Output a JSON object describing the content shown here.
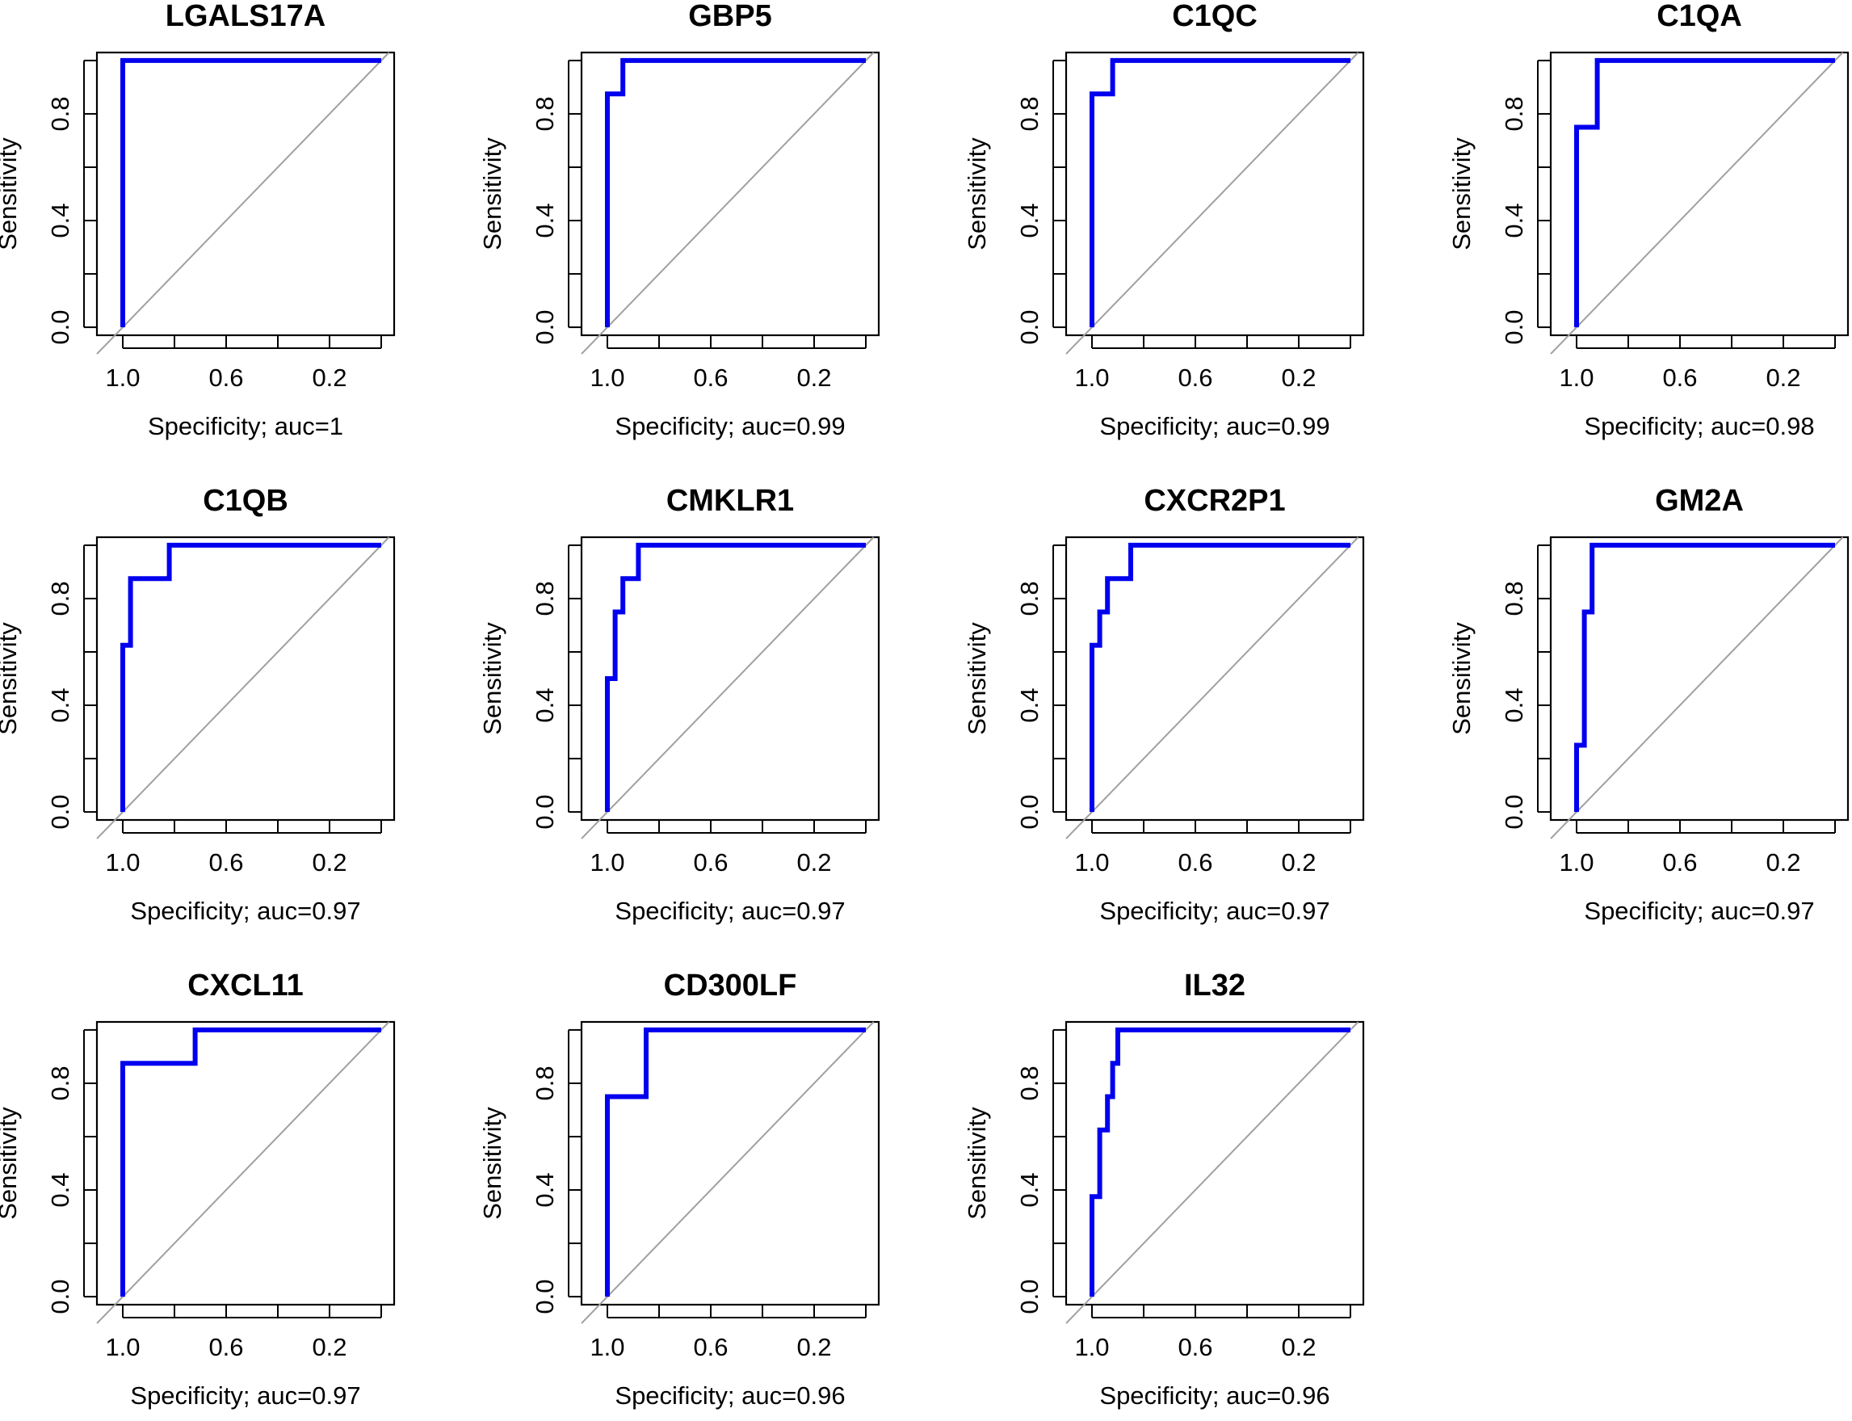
{
  "figure": {
    "layout": "3 rows x 4 columns of ROC curves",
    "line_color": "#0000ee",
    "diagonal_color": "#a0a0a0"
  },
  "chart_data": [
    {
      "type": "line",
      "title": "LGALS17A",
      "xlabel": "Specificity; auc=1",
      "ylabel": "Sensitivity",
      "xlim": [
        1.1,
        -0.05
      ],
      "ylim": [
        -0.03,
        1.03
      ],
      "x_ticks": [
        "1.0",
        "0.6",
        "0.2"
      ],
      "y_ticks": [
        "0.0",
        "0.4",
        "0.8"
      ],
      "series": [
        {
          "name": "ROC",
          "x": [
            1.0,
            1.0,
            0.0
          ],
          "y": [
            0.0,
            1.0,
            1.0
          ]
        }
      ]
    },
    {
      "type": "line",
      "title": "GBP5",
      "xlabel": "Specificity; auc=0.99",
      "ylabel": "Sensitivity",
      "xlim": [
        1.1,
        -0.05
      ],
      "ylim": [
        -0.03,
        1.03
      ],
      "x_ticks": [
        "1.0",
        "0.6",
        "0.2"
      ],
      "y_ticks": [
        "0.0",
        "0.4",
        "0.8"
      ],
      "series": [
        {
          "name": "ROC",
          "x": [
            1.0,
            1.0,
            0.94,
            0.94,
            0.0
          ],
          "y": [
            0.0,
            0.875,
            0.875,
            1.0,
            1.0
          ]
        }
      ]
    },
    {
      "type": "line",
      "title": "C1QC",
      "xlabel": "Specificity; auc=0.99",
      "ylabel": "Sensitivity",
      "xlim": [
        1.1,
        -0.05
      ],
      "ylim": [
        -0.03,
        1.03
      ],
      "x_ticks": [
        "1.0",
        "0.6",
        "0.2"
      ],
      "y_ticks": [
        "0.0",
        "0.4",
        "0.8"
      ],
      "series": [
        {
          "name": "ROC",
          "x": [
            1.0,
            1.0,
            0.92,
            0.92,
            0.0
          ],
          "y": [
            0.0,
            0.875,
            0.875,
            1.0,
            1.0
          ]
        }
      ]
    },
    {
      "type": "line",
      "title": "C1QA",
      "xlabel": "Specificity; auc=0.98",
      "ylabel": "Sensitivity",
      "xlim": [
        1.1,
        -0.05
      ],
      "ylim": [
        -0.03,
        1.03
      ],
      "x_ticks": [
        "1.0",
        "0.6",
        "0.2"
      ],
      "y_ticks": [
        "0.0",
        "0.4",
        "0.8"
      ],
      "series": [
        {
          "name": "ROC",
          "x": [
            1.0,
            1.0,
            0.92,
            0.92,
            0.0
          ],
          "y": [
            0.0,
            0.75,
            0.75,
            1.0,
            1.0
          ]
        }
      ]
    },
    {
      "type": "line",
      "title": "C1QB",
      "xlabel": "Specificity; auc=0.97",
      "ylabel": "Sensitivity",
      "xlim": [
        1.1,
        -0.05
      ],
      "ylim": [
        -0.03,
        1.03
      ],
      "x_ticks": [
        "1.0",
        "0.6",
        "0.2"
      ],
      "y_ticks": [
        "0.0",
        "0.4",
        "0.8"
      ],
      "series": [
        {
          "name": "ROC",
          "x": [
            1.0,
            1.0,
            0.97,
            0.97,
            0.82,
            0.82,
            0.0
          ],
          "y": [
            0.0,
            0.625,
            0.625,
            0.875,
            0.875,
            1.0,
            1.0
          ]
        }
      ]
    },
    {
      "type": "line",
      "title": "CMKLR1",
      "xlabel": "Specificity; auc=0.97",
      "ylabel": "Sensitivity",
      "xlim": [
        1.1,
        -0.05
      ],
      "ylim": [
        -0.03,
        1.03
      ],
      "x_ticks": [
        "1.0",
        "0.6",
        "0.2"
      ],
      "y_ticks": [
        "0.0",
        "0.4",
        "0.8"
      ],
      "series": [
        {
          "name": "ROC",
          "x": [
            1.0,
            1.0,
            0.97,
            0.97,
            0.94,
            0.94,
            0.88,
            0.88,
            0.0
          ],
          "y": [
            0.0,
            0.5,
            0.5,
            0.75,
            0.75,
            0.875,
            0.875,
            1.0,
            1.0
          ]
        }
      ]
    },
    {
      "type": "line",
      "title": "CXCR2P1",
      "xlabel": "Specificity; auc=0.97",
      "ylabel": "Sensitivity",
      "xlim": [
        1.1,
        -0.05
      ],
      "ylim": [
        -0.03,
        1.03
      ],
      "x_ticks": [
        "1.0",
        "0.6",
        "0.2"
      ],
      "y_ticks": [
        "0.0",
        "0.4",
        "0.8"
      ],
      "series": [
        {
          "name": "ROC",
          "x": [
            1.0,
            1.0,
            0.97,
            0.97,
            0.94,
            0.94,
            0.85,
            0.85,
            0.0
          ],
          "y": [
            0.0,
            0.625,
            0.625,
            0.75,
            0.75,
            0.875,
            0.875,
            1.0,
            1.0
          ]
        }
      ]
    },
    {
      "type": "line",
      "title": "GM2A",
      "xlabel": "Specificity; auc=0.97",
      "ylabel": "Sensitivity",
      "xlim": [
        1.1,
        -0.05
      ],
      "ylim": [
        -0.03,
        1.03
      ],
      "x_ticks": [
        "1.0",
        "0.6",
        "0.2"
      ],
      "y_ticks": [
        "0.0",
        "0.4",
        "0.8"
      ],
      "series": [
        {
          "name": "ROC",
          "x": [
            1.0,
            1.0,
            0.97,
            0.97,
            0.94,
            0.94,
            0.0
          ],
          "y": [
            0.0,
            0.25,
            0.25,
            0.75,
            0.75,
            1.0,
            1.0
          ]
        }
      ]
    },
    {
      "type": "line",
      "title": "CXCL11",
      "xlabel": "Specificity; auc=0.97",
      "ylabel": "Sensitivity",
      "xlim": [
        1.1,
        -0.05
      ],
      "ylim": [
        -0.03,
        1.03
      ],
      "x_ticks": [
        "1.0",
        "0.6",
        "0.2"
      ],
      "y_ticks": [
        "0.0",
        "0.4",
        "0.8"
      ],
      "series": [
        {
          "name": "ROC",
          "x": [
            1.0,
            1.0,
            0.72,
            0.72,
            0.0
          ],
          "y": [
            0.0,
            0.875,
            0.875,
            1.0,
            1.0
          ]
        }
      ]
    },
    {
      "type": "line",
      "title": "CD300LF",
      "xlabel": "Specificity; auc=0.96",
      "ylabel": "Sensitivity",
      "xlim": [
        1.1,
        -0.05
      ],
      "ylim": [
        -0.03,
        1.03
      ],
      "x_ticks": [
        "1.0",
        "0.6",
        "0.2"
      ],
      "y_ticks": [
        "0.0",
        "0.4",
        "0.8"
      ],
      "series": [
        {
          "name": "ROC",
          "x": [
            1.0,
            1.0,
            0.85,
            0.85,
            0.0
          ],
          "y": [
            0.0,
            0.75,
            0.75,
            1.0,
            1.0
          ]
        }
      ]
    },
    {
      "type": "line",
      "title": "IL32",
      "xlabel": "Specificity; auc=0.96",
      "ylabel": "Sensitivity",
      "xlim": [
        1.1,
        -0.05
      ],
      "ylim": [
        -0.03,
        1.03
      ],
      "x_ticks": [
        "1.0",
        "0.6",
        "0.2"
      ],
      "y_ticks": [
        "0.0",
        "0.4",
        "0.8"
      ],
      "series": [
        {
          "name": "ROC",
          "x": [
            1.0,
            1.0,
            0.97,
            0.97,
            0.94,
            0.94,
            0.92,
            0.92,
            0.9,
            0.9,
            0.0
          ],
          "y": [
            0.0,
            0.375,
            0.375,
            0.625,
            0.625,
            0.75,
            0.75,
            0.875,
            0.875,
            1.0,
            1.0
          ]
        }
      ]
    }
  ]
}
